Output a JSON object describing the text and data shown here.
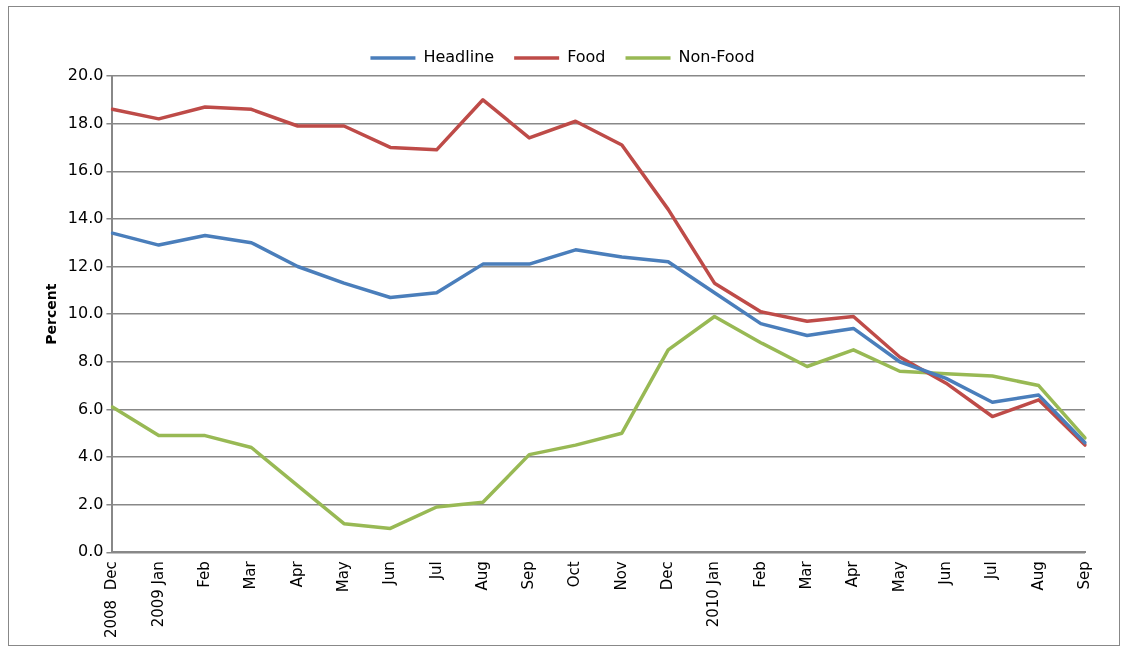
{
  "chart_data": {
    "type": "line",
    "ylabel": "Percent",
    "categories": [
      "2008  Dec",
      "2009 Jan",
      "Feb",
      "Mar",
      "Apr",
      "May",
      "Jun",
      "Jul",
      "Aug",
      "Sep",
      "Oct",
      "Nov",
      "Dec",
      "2010 Jan",
      "Feb",
      "Mar",
      "Apr",
      "May",
      "Jun",
      "Jul",
      "Aug",
      "Sep"
    ],
    "series": [
      {
        "name": "Headline",
        "color": "#4a7ebb",
        "values": [
          13.4,
          12.9,
          13.3,
          13.0,
          12.0,
          11.3,
          10.7,
          10.9,
          12.1,
          12.1,
          12.7,
          12.4,
          12.2,
          10.9,
          9.6,
          9.1,
          9.4,
          8.0,
          7.3,
          6.3,
          6.6,
          4.6
        ]
      },
      {
        "name": "Food",
        "color": "#be4b48",
        "values": [
          18.6,
          18.2,
          18.7,
          18.6,
          17.9,
          17.9,
          17.0,
          16.9,
          19.0,
          17.4,
          18.1,
          17.1,
          14.4,
          11.3,
          10.1,
          9.7,
          9.9,
          8.2,
          7.1,
          5.7,
          6.4,
          4.5
        ]
      },
      {
        "name": "Non-Food",
        "color": "#98b954",
        "values": [
          6.1,
          4.9,
          4.9,
          4.4,
          2.8,
          1.2,
          1.0,
          1.9,
          2.1,
          4.1,
          4.5,
          5.0,
          8.5,
          9.9,
          8.8,
          7.8,
          8.5,
          7.6,
          7.5,
          7.4,
          7.0,
          4.8
        ]
      }
    ],
    "ylim": [
      0,
      20
    ],
    "yticks": [
      {
        "value": 0,
        "label": "0.0"
      },
      {
        "value": 2,
        "label": "2.0"
      },
      {
        "value": 4,
        "label": "4.0"
      },
      {
        "value": 6,
        "label": "6.0"
      },
      {
        "value": 8,
        "label": "8.0"
      },
      {
        "value": 10,
        "label": "10.0"
      },
      {
        "value": 12,
        "label": "12.0"
      },
      {
        "value": 14,
        "label": "14.0"
      },
      {
        "value": 16,
        "label": "16.0"
      },
      {
        "value": 18,
        "label": "18.0"
      },
      {
        "value": 20,
        "label": "20.0"
      }
    ],
    "grid": "y",
    "legend": "top",
    "marker": "none",
    "line_style": "solid"
  }
}
